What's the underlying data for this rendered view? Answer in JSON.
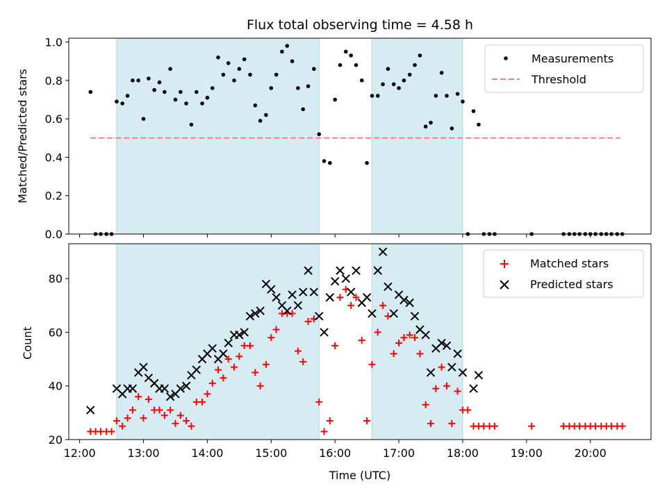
{
  "chart_data": [
    {
      "type": "scatter",
      "title": "Flux total observing time = 4.58 h",
      "xlabel": "",
      "ylabel": "Matched/Predicted stars",
      "xlim": [
        11.83,
        20.95
      ],
      "ylim": [
        0.0,
        1.02
      ],
      "yticks": [
        0.0,
        0.2,
        0.4,
        0.6,
        0.8,
        1.0
      ],
      "ytick_labels": [
        "0.0",
        "0.2",
        "0.4",
        "0.6",
        "0.8",
        "1.0"
      ],
      "legend": {
        "placement": "top-right",
        "entries": [
          "Measurements",
          "Threshold"
        ]
      },
      "threshold": {
        "name": "Threshold",
        "y": 0.5,
        "x_range": [
          12.17,
          20.47
        ],
        "color": "#ff7a7a",
        "style": "dashed"
      },
      "shaded_regions": [
        [
          12.58,
          15.75
        ],
        [
          16.58,
          18.0
        ]
      ],
      "series": [
        {
          "name": "Measurements",
          "color": "#000000",
          "marker": "dot",
          "x": [
            12.17,
            12.25,
            12.33,
            12.42,
            12.5,
            12.58,
            12.67,
            12.75,
            12.83,
            12.92,
            13.0,
            13.08,
            13.17,
            13.25,
            13.33,
            13.42,
            13.5,
            13.58,
            13.67,
            13.75,
            13.83,
            13.92,
            14.0,
            14.08,
            14.17,
            14.25,
            14.33,
            14.42,
            14.5,
            14.58,
            14.67,
            14.75,
            14.83,
            14.92,
            15.0,
            15.08,
            15.17,
            15.25,
            15.33,
            15.42,
            15.5,
            15.58,
            15.67,
            15.75,
            15.83,
            15.92,
            16.0,
            16.08,
            16.17,
            16.25,
            16.33,
            16.42,
            16.5,
            16.58,
            16.67,
            16.75,
            16.83,
            16.92,
            17.0,
            17.08,
            17.17,
            17.25,
            17.33,
            17.42,
            17.5,
            17.58,
            17.67,
            17.75,
            17.83,
            17.92,
            18.0,
            18.08,
            18.17,
            18.25,
            18.33,
            18.42,
            18.5,
            19.08,
            19.58,
            19.67,
            19.75,
            19.83,
            19.92,
            20.0,
            20.08,
            20.17,
            20.25,
            20.33,
            20.42,
            20.5
          ],
          "y": [
            0.74,
            0.0,
            0.0,
            0.0,
            0.0,
            0.69,
            0.68,
            0.72,
            0.8,
            0.8,
            0.6,
            0.81,
            0.75,
            0.79,
            0.74,
            0.86,
            0.7,
            0.74,
            0.68,
            0.57,
            0.74,
            0.68,
            0.71,
            0.76,
            0.92,
            0.83,
            0.89,
            0.8,
            0.86,
            0.91,
            0.83,
            0.67,
            0.59,
            0.62,
            0.76,
            0.83,
            0.95,
            0.98,
            0.9,
            0.76,
            0.65,
            0.77,
            0.86,
            0.52,
            0.38,
            0.37,
            0.7,
            0.88,
            0.95,
            0.93,
            0.88,
            0.8,
            0.37,
            0.72,
            0.72,
            0.78,
            0.86,
            0.78,
            0.76,
            0.8,
            0.83,
            0.88,
            0.93,
            0.56,
            0.58,
            0.72,
            0.84,
            0.72,
            0.55,
            0.73,
            0.69,
            0.0,
            0.64,
            0.57,
            0.0,
            0.0,
            0.0,
            0.0,
            0.0,
            0.0,
            0.0,
            0.0,
            0.0,
            0.0,
            0.0,
            0.0,
            0.0,
            0.0,
            0.0,
            0.0
          ]
        }
      ]
    },
    {
      "type": "scatter",
      "title": "",
      "xlabel": "Time (UTC)",
      "ylabel": "Count",
      "xlim": [
        11.83,
        20.95
      ],
      "ylim": [
        20,
        93
      ],
      "yticks": [
        20,
        40,
        60,
        80
      ],
      "ytick_labels": [
        "20",
        "40",
        "60",
        "80"
      ],
      "xticks": [
        12,
        13,
        14,
        15,
        16,
        17,
        18,
        19,
        20
      ],
      "xtick_labels": [
        "12:00",
        "13:00",
        "14:00",
        "15:00",
        "16:00",
        "17:00",
        "18:00",
        "19:00",
        "20:00"
      ],
      "legend": {
        "placement": "top-right",
        "entries": [
          "Matched stars",
          "Predicted stars"
        ]
      },
      "shaded_regions": [
        [
          12.58,
          15.75
        ],
        [
          16.58,
          18.0
        ]
      ],
      "series": [
        {
          "name": "Matched stars",
          "color": "#ff0000",
          "marker": "plus",
          "x": [
            12.17,
            12.25,
            12.33,
            12.42,
            12.5,
            12.58,
            12.67,
            12.75,
            12.83,
            12.92,
            13.0,
            13.08,
            13.17,
            13.25,
            13.33,
            13.42,
            13.5,
            13.58,
            13.67,
            13.75,
            13.83,
            13.92,
            14.0,
            14.08,
            14.17,
            14.25,
            14.33,
            14.42,
            14.5,
            14.58,
            14.67,
            14.75,
            14.83,
            14.92,
            15.0,
            15.08,
            15.17,
            15.25,
            15.33,
            15.42,
            15.5,
            15.58,
            15.67,
            15.75,
            15.83,
            15.92,
            16.0,
            16.08,
            16.17,
            16.25,
            16.33,
            16.42,
            16.5,
            16.58,
            16.67,
            16.75,
            16.83,
            16.92,
            17.0,
            17.08,
            17.17,
            17.25,
            17.33,
            17.42,
            17.5,
            17.58,
            17.67,
            17.75,
            17.83,
            17.92,
            18.0,
            18.08,
            18.17,
            18.25,
            18.33,
            18.42,
            18.5,
            19.08,
            19.58,
            19.67,
            19.75,
            19.83,
            19.92,
            20.0,
            20.08,
            20.17,
            20.25,
            20.33,
            20.42,
            20.5
          ],
          "y": [
            23,
            23,
            23,
            23,
            23,
            27,
            25,
            28,
            31,
            36,
            28,
            35,
            31,
            31,
            29,
            31,
            26,
            29,
            27,
            25,
            34,
            34,
            37,
            41,
            46,
            43,
            50,
            47,
            51,
            55,
            55,
            45,
            40,
            48,
            58,
            61,
            67,
            67,
            67,
            53,
            49,
            64,
            65,
            34,
            23,
            27,
            55,
            73,
            76,
            70,
            73,
            57,
            27,
            48,
            60,
            70,
            66,
            52,
            56,
            58,
            59,
            58,
            52,
            33,
            26,
            39,
            47,
            40,
            26,
            38,
            31,
            31,
            25,
            25,
            25,
            25,
            25,
            25,
            25,
            25,
            25,
            25,
            25,
            25,
            25,
            25,
            25,
            25,
            25,
            25
          ]
        },
        {
          "name": "Predicted stars",
          "color": "#000000",
          "marker": "x",
          "x": [
            12.17,
            12.58,
            12.67,
            12.75,
            12.83,
            12.92,
            13.0,
            13.08,
            13.17,
            13.25,
            13.33,
            13.42,
            13.5,
            13.58,
            13.67,
            13.75,
            13.83,
            13.92,
            14.0,
            14.08,
            14.17,
            14.25,
            14.33,
            14.42,
            14.5,
            14.58,
            14.67,
            14.75,
            14.83,
            14.92,
            15.0,
            15.08,
            15.17,
            15.25,
            15.33,
            15.42,
            15.5,
            15.58,
            15.67,
            15.75,
            15.83,
            15.92,
            16.0,
            16.08,
            16.17,
            16.25,
            16.33,
            16.42,
            16.5,
            16.58,
            16.67,
            16.75,
            16.83,
            16.92,
            17.0,
            17.08,
            17.17,
            17.25,
            17.33,
            17.42,
            17.5,
            17.58,
            17.67,
            17.75,
            17.83,
            17.92,
            18.0,
            18.17,
            18.25
          ],
          "y": [
            31,
            39,
            37,
            39,
            39,
            45,
            47,
            43,
            41,
            39,
            39,
            36,
            37,
            39,
            40,
            44,
            46,
            50,
            52,
            54,
            50,
            52,
            56,
            59,
            59,
            60,
            66,
            67,
            68,
            78,
            76,
            73,
            70,
            68,
            74,
            70,
            75,
            83,
            75,
            66,
            60,
            73,
            79,
            83,
            80,
            75,
            83,
            71,
            73,
            67,
            83,
            90,
            77,
            67,
            74,
            72,
            71,
            66,
            61,
            59,
            45,
            54,
            56,
            55,
            47,
            52,
            45,
            39,
            44
          ]
        }
      ]
    }
  ]
}
